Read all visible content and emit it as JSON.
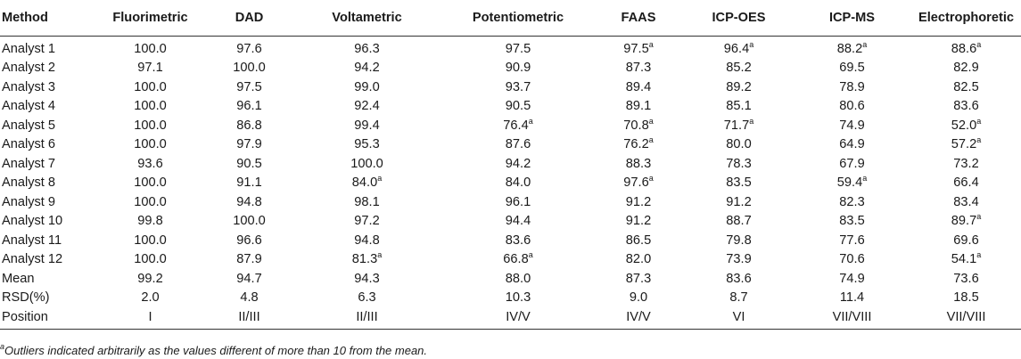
{
  "table": {
    "headers": [
      "Method",
      "Fluorimetric",
      "DAD",
      "Voltametric",
      "Potentiometric",
      "FAAS",
      "ICP-OES",
      "ICP-MS",
      "Electrophoretic"
    ],
    "rows": [
      {
        "label": "Analyst 1",
        "cells": [
          {
            "v": "100.0"
          },
          {
            "v": "97.6"
          },
          {
            "v": "96.3"
          },
          {
            "v": "97.5"
          },
          {
            "v": "97.5",
            "m": "a"
          },
          {
            "v": "96.4",
            "m": "a"
          },
          {
            "v": "88.2",
            "m": "a"
          },
          {
            "v": "88.6",
            "m": "a"
          }
        ]
      },
      {
        "label": "Analyst 2",
        "cells": [
          {
            "v": "97.1"
          },
          {
            "v": "100.0"
          },
          {
            "v": "94.2"
          },
          {
            "v": "90.9"
          },
          {
            "v": "87.3"
          },
          {
            "v": "85.2"
          },
          {
            "v": "69.5"
          },
          {
            "v": "82.9"
          }
        ]
      },
      {
        "label": "Analyst 3",
        "cells": [
          {
            "v": "100.0"
          },
          {
            "v": "97.5"
          },
          {
            "v": "99.0"
          },
          {
            "v": "93.7"
          },
          {
            "v": "89.4"
          },
          {
            "v": "89.2"
          },
          {
            "v": "78.9"
          },
          {
            "v": "82.5"
          }
        ]
      },
      {
        "label": "Analyst 4",
        "cells": [
          {
            "v": "100.0"
          },
          {
            "v": "96.1"
          },
          {
            "v": "92.4"
          },
          {
            "v": "90.5"
          },
          {
            "v": "89.1"
          },
          {
            "v": "85.1"
          },
          {
            "v": "80.6"
          },
          {
            "v": "83.6"
          }
        ]
      },
      {
        "label": "Analyst 5",
        "cells": [
          {
            "v": "100.0"
          },
          {
            "v": "86.8"
          },
          {
            "v": "99.4"
          },
          {
            "v": "76.4",
            "m": "a"
          },
          {
            "v": "70.8",
            "m": "a"
          },
          {
            "v": "71.7",
            "m": "a"
          },
          {
            "v": "74.9"
          },
          {
            "v": "52.0",
            "m": "a"
          }
        ]
      },
      {
        "label": "Analyst 6",
        "cells": [
          {
            "v": "100.0"
          },
          {
            "v": "97.9"
          },
          {
            "v": "95.3"
          },
          {
            "v": "87.6"
          },
          {
            "v": "76.2",
            "m": "a"
          },
          {
            "v": "80.0"
          },
          {
            "v": "64.9"
          },
          {
            "v": "57.2",
            "m": "a"
          }
        ]
      },
      {
        "label": "Analyst 7",
        "cells": [
          {
            "v": "93.6"
          },
          {
            "v": "90.5"
          },
          {
            "v": "100.0"
          },
          {
            "v": "94.2"
          },
          {
            "v": "88.3"
          },
          {
            "v": "78.3"
          },
          {
            "v": "67.9"
          },
          {
            "v": "73.2"
          }
        ]
      },
      {
        "label": "Analyst 8",
        "cells": [
          {
            "v": "100.0"
          },
          {
            "v": "91.1"
          },
          {
            "v": "84.0",
            "m": "a"
          },
          {
            "v": "84.0"
          },
          {
            "v": "97.6",
            "m": "a"
          },
          {
            "v": "83.5"
          },
          {
            "v": "59.4",
            "m": "a"
          },
          {
            "v": "66.4"
          }
        ]
      },
      {
        "label": "Analyst 9",
        "cells": [
          {
            "v": "100.0"
          },
          {
            "v": "94.8"
          },
          {
            "v": "98.1"
          },
          {
            "v": "96.1"
          },
          {
            "v": "91.2"
          },
          {
            "v": "91.2"
          },
          {
            "v": "82.3"
          },
          {
            "v": "83.4"
          }
        ]
      },
      {
        "label": "Analyst 10",
        "cells": [
          {
            "v": "99.8"
          },
          {
            "v": "100.0"
          },
          {
            "v": "97.2"
          },
          {
            "v": "94.4"
          },
          {
            "v": "91.2"
          },
          {
            "v": "88.7"
          },
          {
            "v": "83.5"
          },
          {
            "v": "89.7",
            "m": "a"
          }
        ]
      },
      {
        "label": "Analyst 11",
        "cells": [
          {
            "v": "100.0"
          },
          {
            "v": "96.6"
          },
          {
            "v": "94.8"
          },
          {
            "v": "83.6"
          },
          {
            "v": "86.5"
          },
          {
            "v": "79.8"
          },
          {
            "v": "77.6"
          },
          {
            "v": "69.6"
          }
        ]
      },
      {
        "label": "Analyst 12",
        "cells": [
          {
            "v": "100.0"
          },
          {
            "v": "87.9"
          },
          {
            "v": "81.3",
            "m": "a"
          },
          {
            "v": "66.8",
            "m": "a"
          },
          {
            "v": "82.0"
          },
          {
            "v": "73.9"
          },
          {
            "v": "70.6"
          },
          {
            "v": "54.1",
            "m": "a"
          }
        ]
      },
      {
        "label": "Mean",
        "cells": [
          {
            "v": "99.2"
          },
          {
            "v": "94.7"
          },
          {
            "v": "94.3"
          },
          {
            "v": "88.0"
          },
          {
            "v": "87.3"
          },
          {
            "v": "83.6"
          },
          {
            "v": "74.9"
          },
          {
            "v": "73.6"
          }
        ]
      },
      {
        "label": "RSD(%)",
        "cells": [
          {
            "v": "2.0"
          },
          {
            "v": "4.8"
          },
          {
            "v": "6.3"
          },
          {
            "v": "10.3"
          },
          {
            "v": "9.0"
          },
          {
            "v": "8.7"
          },
          {
            "v": "11.4"
          },
          {
            "v": "18.5"
          }
        ]
      },
      {
        "label": "Position",
        "cells": [
          {
            "v": "I"
          },
          {
            "v": "II/III"
          },
          {
            "v": "II/III"
          },
          {
            "v": "IV/V"
          },
          {
            "v": "IV/V"
          },
          {
            "v": "VI"
          },
          {
            "v": "VII/VIII"
          },
          {
            "v": "VII/VIII"
          }
        ]
      }
    ]
  },
  "footnote": {
    "mark": "a",
    "text": "Outliers indicated arbitrarily as the values different of more than 10 from the mean."
  }
}
